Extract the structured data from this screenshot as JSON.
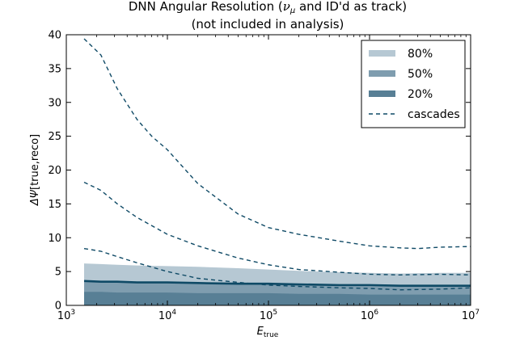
{
  "chart_data": {
    "type": "area",
    "title_line1": "DNN Angular Resolution (",
    "title_nu": "ν",
    "title_mu": "μ",
    "title_line1_rest": " and ID'd as track)",
    "title_line2": "(not included in analysis)",
    "xlabel_main": "E",
    "xlabel_sub": "true",
    "ylabel_main": "ΔΨ",
    "ylabel_sub": "[true,reco]",
    "x_scale": "log",
    "xlim": [
      1000,
      10000000
    ],
    "ylim": [
      0,
      40
    ],
    "x_ticks": [
      {
        "value": 1000,
        "base": "10",
        "exp": "3"
      },
      {
        "value": 10000,
        "base": "10",
        "exp": "4"
      },
      {
        "value": 100000,
        "base": "10",
        "exp": "5"
      },
      {
        "value": 1000000,
        "base": "10",
        "exp": "6"
      },
      {
        "value": 10000000,
        "base": "10",
        "exp": "7"
      }
    ],
    "y_ticks": [
      "0",
      "5",
      "10",
      "15",
      "20",
      "25",
      "30",
      "35",
      "40"
    ],
    "x": [
      1500,
      2200,
      3200,
      5000,
      10000,
      20000,
      50000,
      100000,
      200000,
      500000,
      1000000,
      2000000,
      5000000,
      10000000
    ],
    "bands": [
      {
        "name": "80%",
        "color": "#b6c8d3",
        "lower": [
          0,
          0,
          0,
          0,
          0,
          0,
          0,
          0,
          0,
          0,
          0,
          0,
          0,
          0
        ],
        "upper": [
          6.2,
          6.1,
          6.0,
          5.9,
          5.8,
          5.7,
          5.5,
          5.3,
          5.1,
          4.9,
          4.8,
          4.7,
          4.8,
          4.8
        ]
      },
      {
        "name": "50%",
        "color": "#7f9daf",
        "lower": [
          0,
          0,
          0,
          0,
          0,
          0,
          0,
          0,
          0,
          0,
          0,
          0,
          0,
          0
        ],
        "upper": [
          3.6,
          3.5,
          3.5,
          3.4,
          3.4,
          3.3,
          3.2,
          3.2,
          3.1,
          3.0,
          3.0,
          2.9,
          2.9,
          2.9
        ]
      },
      {
        "name": "20%",
        "color": "#587f95",
        "lower": [
          0,
          0,
          0,
          0,
          0,
          0,
          0,
          0,
          0,
          0,
          0,
          0,
          0,
          0
        ],
        "upper": [
          2.0,
          2.0,
          1.9,
          1.9,
          1.9,
          1.8,
          1.8,
          1.8,
          1.7,
          1.7,
          1.6,
          1.6,
          1.6,
          1.6
        ]
      }
    ],
    "median": {
      "color": "#0f4a66",
      "values": [
        3.6,
        3.5,
        3.5,
        3.4,
        3.4,
        3.3,
        3.2,
        3.2,
        3.1,
        3.0,
        3.0,
        2.9,
        2.9,
        2.9
      ]
    },
    "cascades": {
      "name": "cascades",
      "color": "#0f4a66",
      "lines": [
        {
          "x": [
            1500,
            2200,
            3200,
            5000,
            7000,
            10000,
            20000,
            50000,
            100000,
            200000,
            500000,
            1000000,
            2000000,
            3000000,
            5000000,
            10000000
          ],
          "y": [
            39.4,
            37.0,
            32.0,
            27.5,
            25.0,
            23.0,
            18.0,
            13.5,
            11.5,
            10.5,
            9.5,
            8.8,
            8.5,
            8.4,
            8.6,
            8.7
          ]
        },
        {
          "x": [
            1500,
            2200,
            3200,
            5000,
            10000,
            20000,
            50000,
            100000,
            200000,
            500000,
            1000000,
            2000000,
            5000000,
            10000000
          ],
          "y": [
            18.2,
            17.0,
            15.0,
            13.0,
            10.5,
            8.8,
            7.0,
            6.0,
            5.3,
            4.9,
            4.6,
            4.5,
            4.6,
            4.5
          ]
        },
        {
          "x": [
            1500,
            2200,
            3200,
            5000,
            10000,
            20000,
            50000,
            100000,
            200000,
            500000,
            1000000,
            2000000,
            5000000,
            10000000
          ],
          "y": [
            8.4,
            8.0,
            7.2,
            6.3,
            5.0,
            4.0,
            3.4,
            3.0,
            2.8,
            2.6,
            2.5,
            2.3,
            2.4,
            2.6
          ]
        }
      ]
    },
    "legend": {
      "placement": "top-right",
      "entries": [
        "80%",
        "50%",
        "20%",
        "cascades"
      ]
    },
    "grid": false
  }
}
